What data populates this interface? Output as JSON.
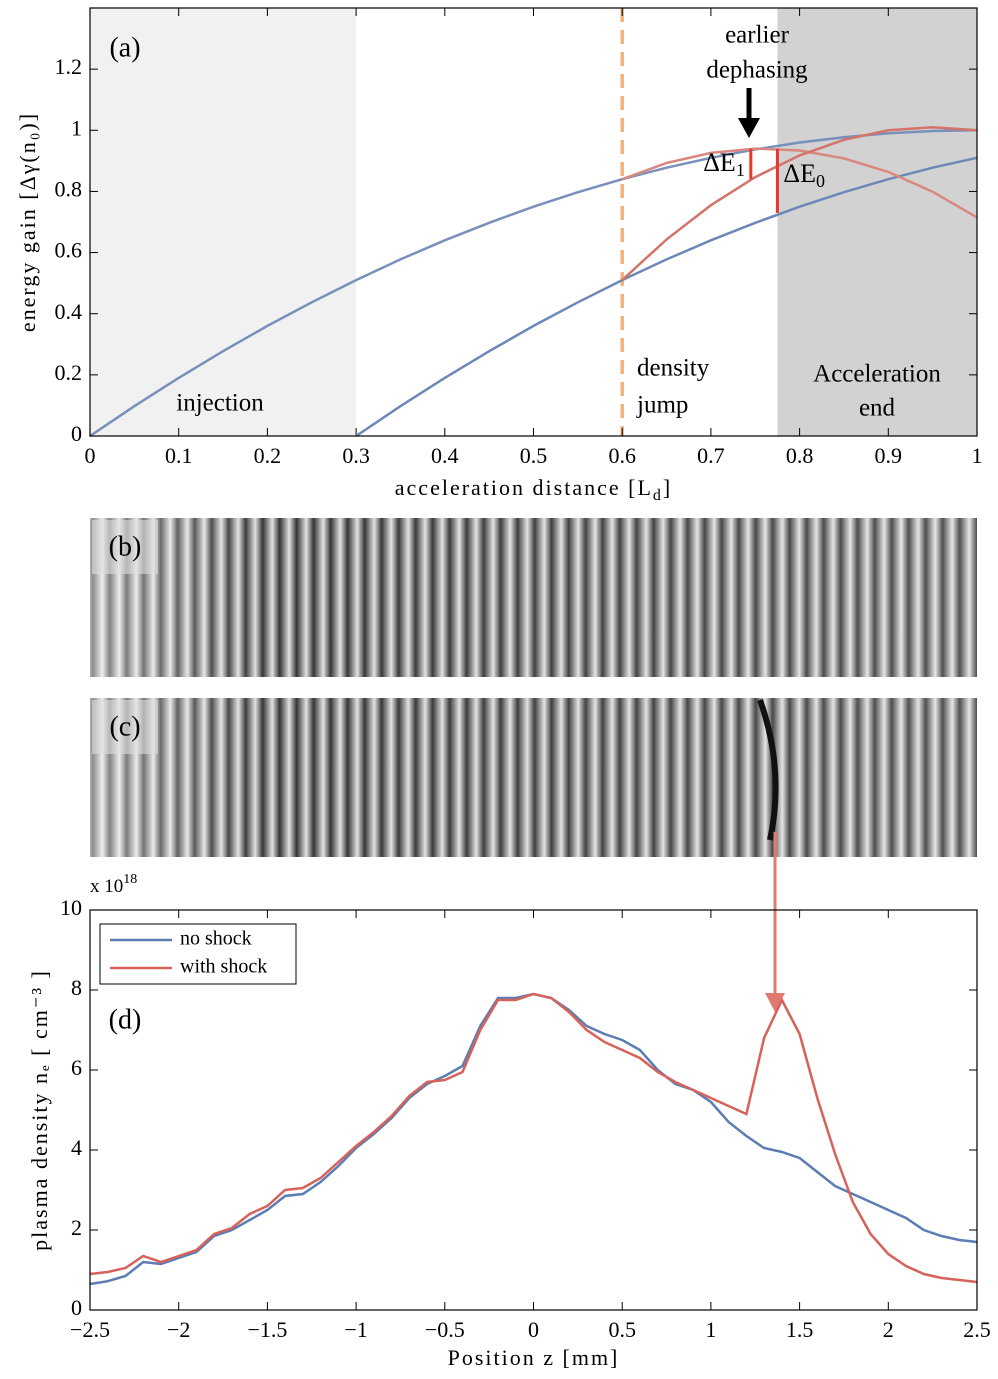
{
  "chart_data": [
    {
      "type": "line",
      "panel_label": "(a)",
      "ylabel": "energy gain [Δγ(n₀)]",
      "xlabel": {
        "text": "acceleration distance [L",
        "sub": "d",
        "tail": "]"
      },
      "xlim": [
        0,
        1
      ],
      "ylim": [
        0,
        1.4
      ],
      "xticks": [
        0,
        0.1,
        0.2,
        0.3,
        0.4,
        0.5,
        0.6,
        0.7,
        0.8,
        0.9,
        1
      ],
      "yticks": [
        0,
        0.2,
        0.4,
        0.6,
        0.8,
        1,
        1.2
      ],
      "regions": [
        {
          "x0": 0,
          "x1": 0.3,
          "color": "#f1f1f1"
        },
        {
          "x0": 0.775,
          "x1": 1,
          "color": "#d2d2d2"
        }
      ],
      "vline": {
        "x": 0.6,
        "color": "#f0b47c"
      },
      "x": [
        0,
        0.05,
        0.1,
        0.15,
        0.2,
        0.25,
        0.3,
        0.35,
        0.4,
        0.45,
        0.5,
        0.55,
        0.6,
        0.65,
        0.7,
        0.75,
        0.8,
        0.85,
        0.9,
        0.95,
        1
      ],
      "series": [
        {
          "color": "#7890bb",
          "values": [
            0,
            0.0975,
            0.19,
            0.2775,
            0.36,
            0.4375,
            0.51,
            0.5775,
            0.64,
            0.6975,
            0.75,
            0.7975,
            0.84,
            0.8775,
            0.91,
            0.9375,
            0.96,
            0.9775,
            0.99,
            0.9975,
            1
          ]
        },
        {
          "color": "#6d88b8",
          "values": [
            null,
            null,
            null,
            null,
            null,
            null,
            0,
            0.0975,
            0.19,
            0.2775,
            0.36,
            0.4375,
            0.51,
            0.5775,
            0.64,
            0.6975,
            0.75,
            0.7975,
            0.84,
            0.8775,
            0.91
          ]
        },
        {
          "color": "#d98880",
          "values": [
            null,
            null,
            null,
            null,
            null,
            null,
            null,
            null,
            null,
            null,
            null,
            null,
            0.84,
            0.893,
            0.926,
            0.94,
            0.934,
            0.908,
            0.864,
            0.799,
            0.715
          ]
        },
        {
          "color": "#d47368",
          "values": [
            null,
            null,
            null,
            null,
            null,
            null,
            null,
            null,
            null,
            null,
            null,
            null,
            0.51,
            0.643,
            0.755,
            0.847,
            0.918,
            0.969,
            1.0,
            1.01,
            1.0
          ]
        }
      ],
      "markers": [
        {
          "x": 0.745,
          "y0": 0.84,
          "y1": 0.94,
          "label": "ΔE",
          "sub": "1"
        },
        {
          "x": 0.775,
          "y0": 0.73,
          "y1": 0.94,
          "label": "ΔE",
          "sub": "0"
        }
      ],
      "marker_color": "#e8372c",
      "annotations": {
        "injection": "injection",
        "density": [
          "density",
          "jump"
        ],
        "end": [
          "Acceleration",
          "end"
        ],
        "dephasing": [
          "earlier",
          "dephasing"
        ]
      }
    },
    {
      "type": "line",
      "panel_label": "(d)",
      "ylabel": "plasma density nₑ [ cm⁻³ ]",
      "xlabel": "Position z [mm]",
      "y_multiplier": "x 10",
      "y_multiplier_exp": "18",
      "xlim": [
        -2.5,
        2.5
      ],
      "ylim": [
        0,
        10
      ],
      "xticks": [
        {
          "value": -2.5,
          "label": "−2.5"
        },
        {
          "value": -2,
          "label": "−2"
        },
        {
          "value": -1.5,
          "label": "−1.5"
        },
        {
          "value": -1,
          "label": "−1"
        },
        {
          "value": -0.5,
          "label": "−0.5"
        },
        0,
        0.5,
        1,
        1.5,
        2,
        2.5
      ],
      "yticks": [
        0,
        2,
        4,
        6,
        8,
        10
      ],
      "legend": "upper left",
      "x": [
        -2.5,
        -2.4,
        -2.3,
        -2.2,
        -2.1,
        -2.0,
        -1.9,
        -1.8,
        -1.7,
        -1.6,
        -1.5,
        -1.4,
        -1.3,
        -1.2,
        -1.1,
        -1.0,
        -0.9,
        -0.8,
        -0.7,
        -0.6,
        -0.5,
        -0.4,
        -0.3,
        -0.2,
        -0.1,
        0,
        0.1,
        0.2,
        0.3,
        0.4,
        0.5,
        0.6,
        0.7,
        0.8,
        0.9,
        1.0,
        1.1,
        1.2,
        1.3,
        1.4,
        1.5,
        1.6,
        1.7,
        1.8,
        1.9,
        2.0,
        2.1,
        2.2,
        2.3,
        2.4,
        2.5
      ],
      "series": [
        {
          "name": "no shock",
          "color": "#5b7db3",
          "values": [
            0.65,
            0.72,
            0.85,
            1.2,
            1.15,
            1.3,
            1.45,
            1.85,
            2.0,
            2.25,
            2.5,
            2.85,
            2.9,
            3.2,
            3.6,
            4.05,
            4.4,
            4.8,
            5.3,
            5.65,
            5.85,
            6.1,
            7.1,
            7.8,
            7.8,
            7.9,
            7.8,
            7.5,
            7.1,
            6.9,
            6.75,
            6.5,
            6.0,
            5.65,
            5.5,
            5.2,
            4.7,
            4.35,
            4.05,
            3.95,
            3.8,
            3.45,
            3.1,
            2.9,
            2.7,
            2.5,
            2.3,
            2.0,
            1.85,
            1.75,
            1.7
          ]
        },
        {
          "name": "with shock",
          "color": "#d6625a",
          "values": [
            0.9,
            0.95,
            1.05,
            1.35,
            1.2,
            1.35,
            1.5,
            1.9,
            2.05,
            2.4,
            2.6,
            3.0,
            3.05,
            3.3,
            3.7,
            4.1,
            4.45,
            4.85,
            5.35,
            5.7,
            5.75,
            5.95,
            7.0,
            7.75,
            7.75,
            7.9,
            7.8,
            7.45,
            7.0,
            6.7,
            6.5,
            6.3,
            5.95,
            5.7,
            5.5,
            5.3,
            5.1,
            4.9,
            6.8,
            7.75,
            6.9,
            5.3,
            3.9,
            2.7,
            1.9,
            1.4,
            1.1,
            0.9,
            0.8,
            0.75,
            0.7
          ]
        }
      ]
    }
  ],
  "images": [
    {
      "label": "(b)"
    },
    {
      "label": "(c)"
    }
  ]
}
